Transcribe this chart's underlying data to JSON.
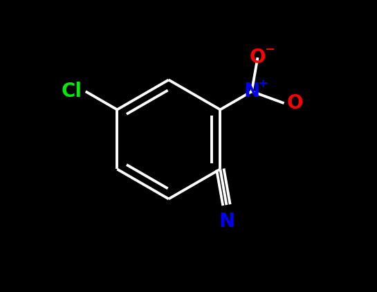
{
  "background_color": "#000000",
  "bond_color": "#ffffff",
  "bond_width": 2.8,
  "atoms": {
    "Cl": {
      "color": "#00ee00",
      "fontsize": 20,
      "fontweight": "bold",
      "label": "Cl"
    },
    "N_nitrile": {
      "color": "#0000ff",
      "fontsize": 20,
      "fontweight": "bold",
      "label": "N"
    },
    "N_nitro_N": {
      "color": "#0000ff",
      "fontsize": 20,
      "fontweight": "bold",
      "label": "N"
    },
    "N_nitro_plus": {
      "color": "#0000ff",
      "fontsize": 13,
      "fontweight": "bold",
      "label": "+"
    },
    "O_minus_O": {
      "color": "#ff0000",
      "fontsize": 20,
      "fontweight": "bold",
      "label": "O"
    },
    "O_minus_sign": {
      "color": "#ff0000",
      "fontsize": 13,
      "fontweight": "bold",
      "label": "−"
    },
    "O_neutral": {
      "color": "#ff0000",
      "fontsize": 20,
      "fontweight": "bold",
      "label": "O"
    }
  },
  "xlim": [
    -2.5,
    2.5
  ],
  "ylim": [
    -2.2,
    2.2
  ]
}
